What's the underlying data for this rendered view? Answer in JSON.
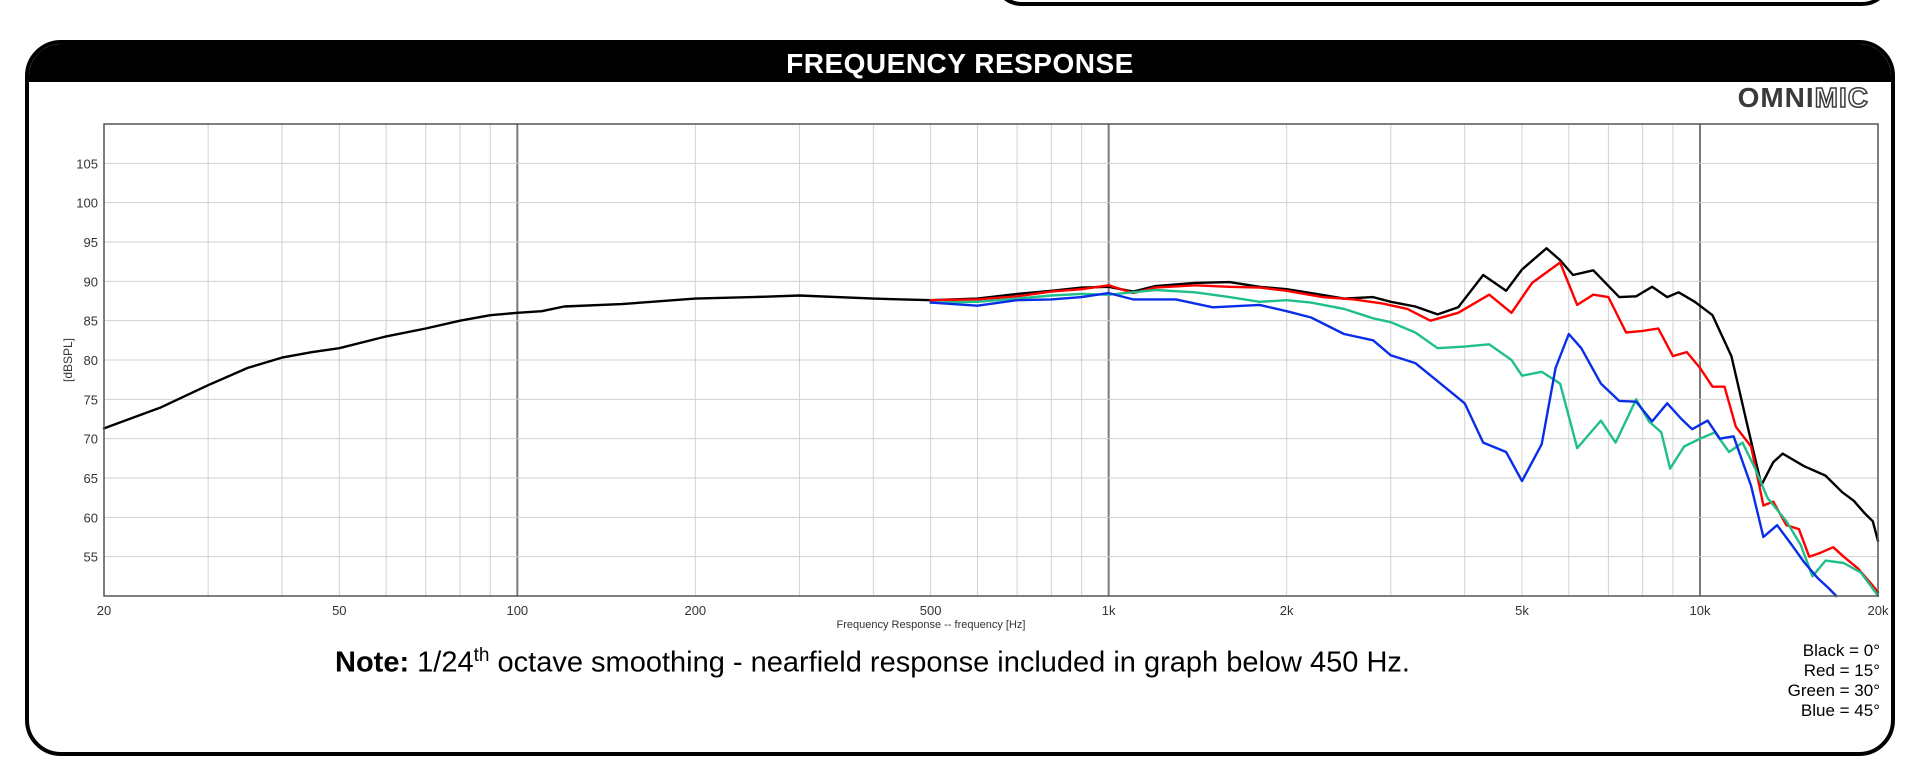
{
  "panel": {
    "title": "FREQUENCY RESPONSE",
    "logo_bold": "OMNI",
    "logo_light": "MIC"
  },
  "note": {
    "label": "Note:",
    "pre": "1/24",
    "sup": "th",
    "post": " octave smoothing - nearfield response included in graph below 450 Hz."
  },
  "legend": [
    "Black = 0°",
    "Red = 15°",
    "Green = 30°",
    "Blue = 45°"
  ],
  "chart_data": {
    "type": "line",
    "xlabel": "Frequency Response -- frequency [Hz]",
    "ylabel": "[dBSPL]",
    "xscale": "log",
    "xlim": [
      20,
      20000
    ],
    "ylim": [
      50,
      110
    ],
    "y_ticks": [
      55,
      60,
      65,
      70,
      75,
      80,
      85,
      90,
      95,
      100,
      105
    ],
    "x_ticks": [
      {
        "value": 20,
        "label": "20"
      },
      {
        "value": 50,
        "label": "50"
      },
      {
        "value": 100,
        "label": "100"
      },
      {
        "value": 200,
        "label": "200"
      },
      {
        "value": 500,
        "label": "500"
      },
      {
        "value": 1000,
        "label": "1k"
      },
      {
        "value": 2000,
        "label": "2k"
      },
      {
        "value": 5000,
        "label": "5k"
      },
      {
        "value": 10000,
        "label": "10k"
      },
      {
        "value": 20000,
        "label": "20k"
      }
    ],
    "grid": true,
    "series": [
      {
        "name": "Black = 0°",
        "color": "#000000",
        "points": [
          [
            20,
            71.3
          ],
          [
            25,
            74
          ],
          [
            30,
            76.8
          ],
          [
            35,
            79
          ],
          [
            40,
            80.3
          ],
          [
            45,
            81
          ],
          [
            50,
            81.5
          ],
          [
            60,
            83
          ],
          [
            70,
            84
          ],
          [
            80,
            85
          ],
          [
            90,
            85.7
          ],
          [
            100,
            86
          ],
          [
            110,
            86.2
          ],
          [
            120,
            86.8
          ],
          [
            150,
            87.1
          ],
          [
            200,
            87.8
          ],
          [
            250,
            88
          ],
          [
            300,
            88.2
          ],
          [
            400,
            87.8
          ],
          [
            500,
            87.6
          ],
          [
            600,
            87.8
          ],
          [
            700,
            88.4
          ],
          [
            800,
            88.8
          ],
          [
            900,
            89.2
          ],
          [
            1000,
            89.3
          ],
          [
            1100,
            88.7
          ],
          [
            1200,
            89.4
          ],
          [
            1400,
            89.8
          ],
          [
            1600,
            89.9
          ],
          [
            1800,
            89.3
          ],
          [
            2000,
            89
          ],
          [
            2200,
            88.5
          ],
          [
            2500,
            87.8
          ],
          [
            2800,
            88
          ],
          [
            3000,
            87.4
          ],
          [
            3300,
            86.8
          ],
          [
            3600,
            85.8
          ],
          [
            3900,
            86.7
          ],
          [
            4300,
            90.8
          ],
          [
            4700,
            88.8
          ],
          [
            5000,
            91.5
          ],
          [
            5500,
            94.2
          ],
          [
            5800,
            92.7
          ],
          [
            6100,
            90.8
          ],
          [
            6600,
            91.4
          ],
          [
            7300,
            88
          ],
          [
            7800,
            88.1
          ],
          [
            8300,
            89.3
          ],
          [
            8800,
            88
          ],
          [
            9200,
            88.6
          ],
          [
            9800,
            87.4
          ],
          [
            10500,
            85.7
          ],
          [
            11300,
            80.5
          ],
          [
            12000,
            72
          ],
          [
            12700,
            64.1
          ],
          [
            13300,
            67
          ],
          [
            13800,
            68.1
          ],
          [
            15000,
            66.5
          ],
          [
            16300,
            65.3
          ],
          [
            17400,
            63.2
          ],
          [
            18200,
            62.1
          ],
          [
            19000,
            60.5
          ],
          [
            19600,
            59.5
          ],
          [
            20000,
            57
          ]
        ]
      },
      {
        "name": "Red = 15°",
        "color": "#ff0000",
        "points": [
          [
            500,
            87.6
          ],
          [
            600,
            87.7
          ],
          [
            700,
            88.1
          ],
          [
            800,
            88.7
          ],
          [
            900,
            89
          ],
          [
            1000,
            89.5
          ],
          [
            1100,
            88.5
          ],
          [
            1200,
            89.2
          ],
          [
            1400,
            89.5
          ],
          [
            1600,
            89.3
          ],
          [
            1800,
            89.2
          ],
          [
            2000,
            88.8
          ],
          [
            2300,
            88
          ],
          [
            2600,
            87.7
          ],
          [
            2900,
            87.2
          ],
          [
            3200,
            86.5
          ],
          [
            3500,
            85
          ],
          [
            3900,
            86
          ],
          [
            4400,
            88.3
          ],
          [
            4800,
            86
          ],
          [
            5200,
            89.8
          ],
          [
            5800,
            92.4
          ],
          [
            6200,
            87
          ],
          [
            6600,
            88.3
          ],
          [
            7000,
            88
          ],
          [
            7500,
            83.5
          ],
          [
            8000,
            83.7
          ],
          [
            8500,
            84
          ],
          [
            9000,
            80.5
          ],
          [
            9500,
            81
          ],
          [
            10000,
            79
          ],
          [
            10500,
            76.6
          ],
          [
            11000,
            76.6
          ],
          [
            11500,
            71.5
          ],
          [
            12200,
            69
          ],
          [
            12800,
            61.5
          ],
          [
            13300,
            62
          ],
          [
            14000,
            59
          ],
          [
            14700,
            58.5
          ],
          [
            15300,
            55
          ],
          [
            16000,
            55.5
          ],
          [
            16800,
            56.2
          ],
          [
            17500,
            55
          ],
          [
            18500,
            53.5
          ],
          [
            19500,
            51.5
          ],
          [
            20000,
            50.5
          ]
        ]
      },
      {
        "name": "Green = 30°",
        "color": "#1fbf8a",
        "points": [
          [
            500,
            87.3
          ],
          [
            600,
            87.4
          ],
          [
            700,
            87.8
          ],
          [
            800,
            88.2
          ],
          [
            900,
            88.4
          ],
          [
            1000,
            88.3
          ],
          [
            1100,
            88.6
          ],
          [
            1200,
            88.9
          ],
          [
            1400,
            88.6
          ],
          [
            1600,
            88
          ],
          [
            1800,
            87.4
          ],
          [
            2000,
            87.6
          ],
          [
            2200,
            87.3
          ],
          [
            2500,
            86.5
          ],
          [
            2800,
            85.3
          ],
          [
            3000,
            84.8
          ],
          [
            3300,
            83.5
          ],
          [
            3600,
            81.5
          ],
          [
            4000,
            81.7
          ],
          [
            4400,
            82
          ],
          [
            4800,
            80
          ],
          [
            5000,
            78
          ],
          [
            5400,
            78.5
          ],
          [
            5800,
            77
          ],
          [
            6200,
            68.8
          ],
          [
            6800,
            72.3
          ],
          [
            7200,
            69.5
          ],
          [
            7800,
            75
          ],
          [
            8200,
            72.2
          ],
          [
            8600,
            70.8
          ],
          [
            8900,
            66.2
          ],
          [
            9400,
            69
          ],
          [
            10000,
            70
          ],
          [
            10600,
            70.8
          ],
          [
            11200,
            68.3
          ],
          [
            11800,
            69.5
          ],
          [
            12400,
            66.2
          ],
          [
            13000,
            62.5
          ],
          [
            14000,
            59.5
          ],
          [
            14800,
            56.5
          ],
          [
            15500,
            52.5
          ],
          [
            16300,
            54.5
          ],
          [
            17500,
            54.2
          ],
          [
            18700,
            53
          ],
          [
            19800,
            50.5
          ],
          [
            20000,
            50
          ]
        ]
      },
      {
        "name": "Blue = 45°",
        "color": "#0a2ee8",
        "points": [
          [
            500,
            87.3
          ],
          [
            600,
            86.9
          ],
          [
            700,
            87.6
          ],
          [
            800,
            87.7
          ],
          [
            900,
            88
          ],
          [
            1000,
            88.5
          ],
          [
            1100,
            87.7
          ],
          [
            1300,
            87.7
          ],
          [
            1500,
            86.7
          ],
          [
            1800,
            87
          ],
          [
            2000,
            86.2
          ],
          [
            2200,
            85.4
          ],
          [
            2500,
            83.3
          ],
          [
            2800,
            82.5
          ],
          [
            3000,
            80.6
          ],
          [
            3300,
            79.6
          ],
          [
            3600,
            77.3
          ],
          [
            4000,
            74.5
          ],
          [
            4300,
            69.5
          ],
          [
            4700,
            68.3
          ],
          [
            5000,
            64.6
          ],
          [
            5400,
            69.3
          ],
          [
            5700,
            79
          ],
          [
            6000,
            83.3
          ],
          [
            6300,
            81.5
          ],
          [
            6800,
            77
          ],
          [
            7300,
            74.8
          ],
          [
            7800,
            74.7
          ],
          [
            8300,
            72.2
          ],
          [
            8800,
            74.5
          ],
          [
            9300,
            72.5
          ],
          [
            9700,
            71.2
          ],
          [
            10300,
            72.3
          ],
          [
            10800,
            70
          ],
          [
            11400,
            70.3
          ],
          [
            12200,
            64
          ],
          [
            12800,
            57.5
          ],
          [
            13500,
            59
          ],
          [
            14300,
            56.5
          ],
          [
            15000,
            54.3
          ],
          [
            15800,
            52.3
          ],
          [
            16500,
            51
          ],
          [
            17000,
            50
          ]
        ]
      }
    ]
  }
}
